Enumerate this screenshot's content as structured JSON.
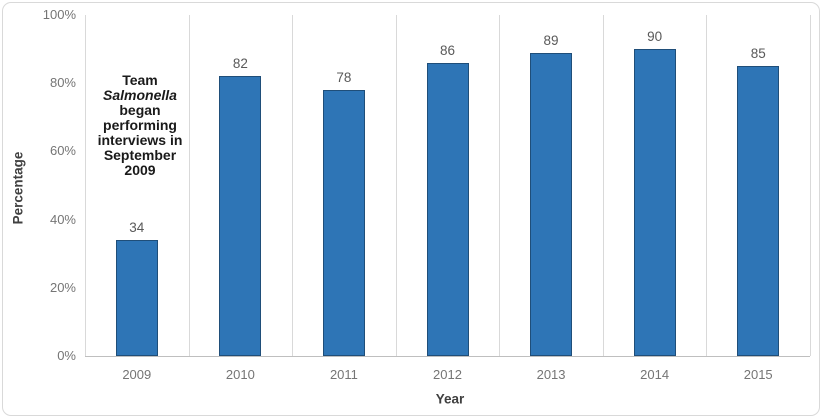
{
  "chart_data": {
    "type": "bar",
    "title": "",
    "categories": [
      "2009",
      "2010",
      "2011",
      "2012",
      "2013",
      "2014",
      "2015"
    ],
    "values": [
      34,
      82,
      78,
      86,
      89,
      90,
      85
    ],
    "data_labels": [
      "34",
      "82",
      "78",
      "86",
      "89",
      "90",
      "85"
    ],
    "xlabel": "Year",
    "ylabel": "Percentage",
    "ylim": [
      0,
      100
    ],
    "ytick_values": [
      0,
      20,
      40,
      60,
      80,
      100
    ],
    "ytick_labels": [
      "0%",
      "20%",
      "40%",
      "60%",
      "80%",
      "100%"
    ],
    "grid": "vertical-category-separators",
    "legend": "none",
    "colors": {
      "bar_fill": "#2E75B6",
      "bar_border": "#1F4E79",
      "gridline": "#D9D9D9",
      "axis_line": "#BFBFBF",
      "tick_label": "#757575",
      "data_label": "#595959",
      "axis_title": "#404040",
      "chart_border": "#D9D9D9",
      "background": "#FFFFFF"
    }
  },
  "annotation": {
    "lines": [
      "Team",
      "Salmonella",
      "began",
      "performing",
      "interviews in",
      "September",
      "2009"
    ],
    "italic_lines": [
      1
    ],
    "color": "#1A1A1A"
  }
}
